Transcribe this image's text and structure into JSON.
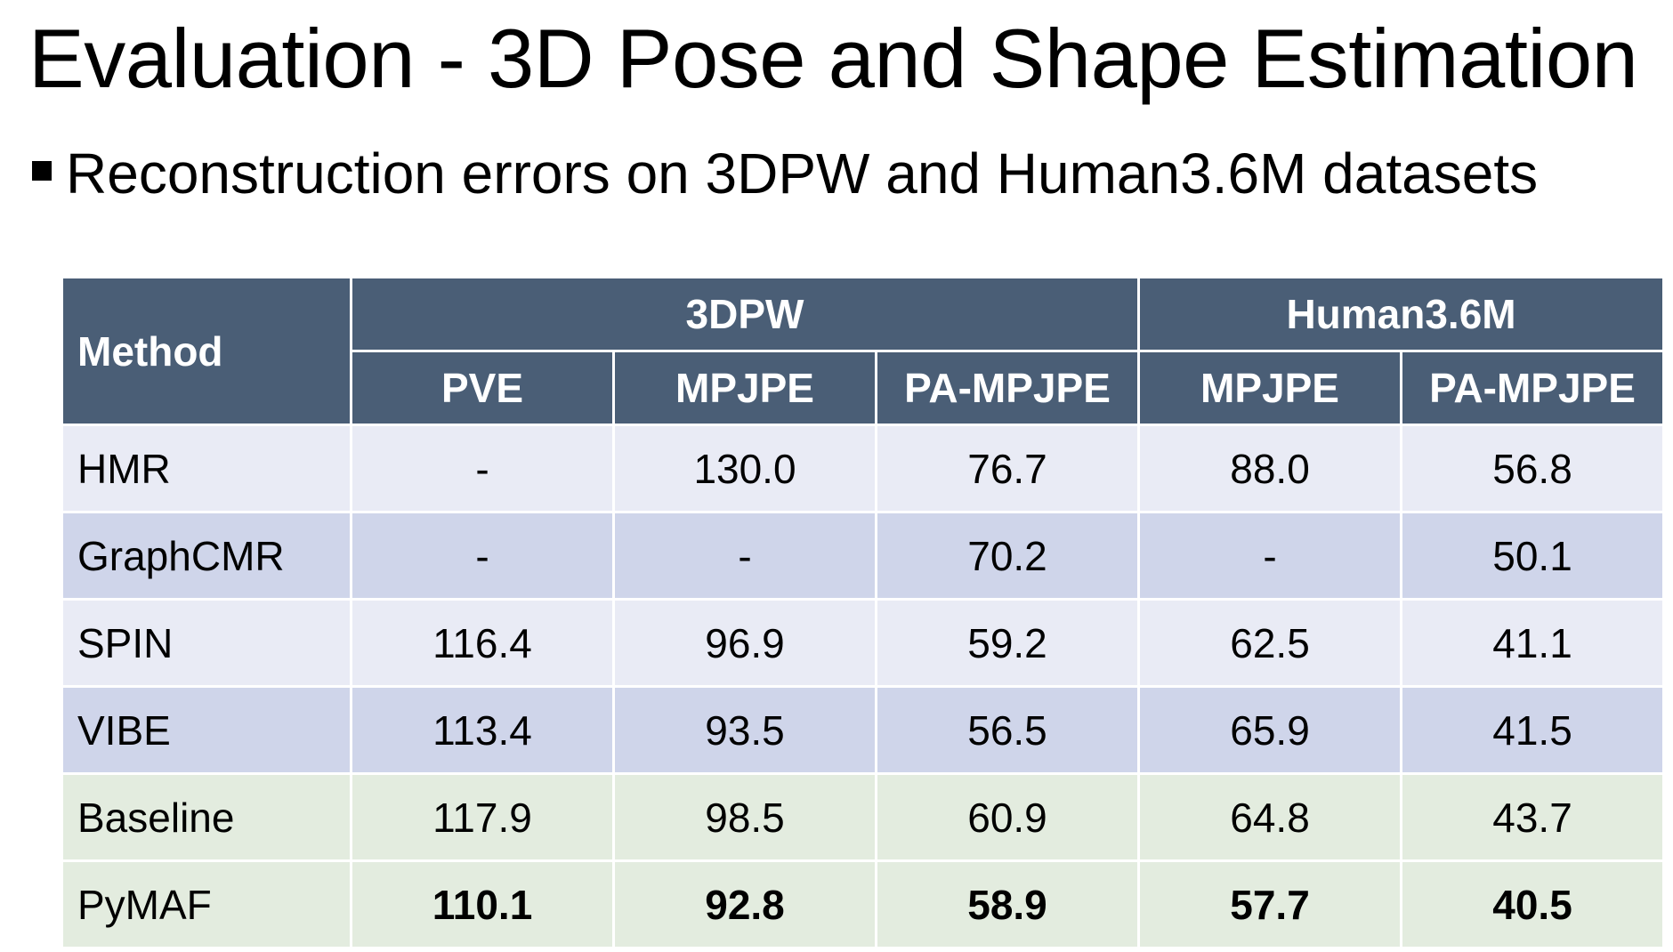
{
  "title": "Evaluation - 3D Pose and Shape Estimation",
  "bullet": "Reconstruction errors on 3DPW and Human3.6M datasets",
  "table": {
    "method_header": "Method",
    "groups": [
      "3DPW",
      "Human3.6M"
    ],
    "columns": [
      "PVE",
      "MPJPE",
      "PA-MPJPE",
      "MPJPE",
      "PA-MPJPE"
    ],
    "rows": [
      {
        "method": "HMR",
        "values": [
          "-",
          "130.0",
          "76.7",
          "88.0",
          "56.8"
        ]
      },
      {
        "method": "GraphCMR",
        "values": [
          "-",
          "-",
          "70.2",
          "-",
          "50.1"
        ]
      },
      {
        "method": "SPIN",
        "values": [
          "116.4",
          "96.9",
          "59.2",
          "62.5",
          "41.1"
        ]
      },
      {
        "method": "VIBE",
        "values": [
          "113.4",
          "93.5",
          "56.5",
          "65.9",
          "41.5"
        ]
      },
      {
        "method": "Baseline",
        "values": [
          "117.9",
          "98.5",
          "60.9",
          "64.8",
          "43.7"
        ]
      },
      {
        "method": "PyMAF",
        "values": [
          "110.1",
          "92.8",
          "58.9",
          "57.7",
          "40.5"
        ]
      }
    ]
  },
  "colors": {
    "header_bg": "#4a5e76",
    "row_light": "#e9ebf5",
    "row_dark": "#cfd5ea",
    "row_green": "#e3ecdf"
  }
}
